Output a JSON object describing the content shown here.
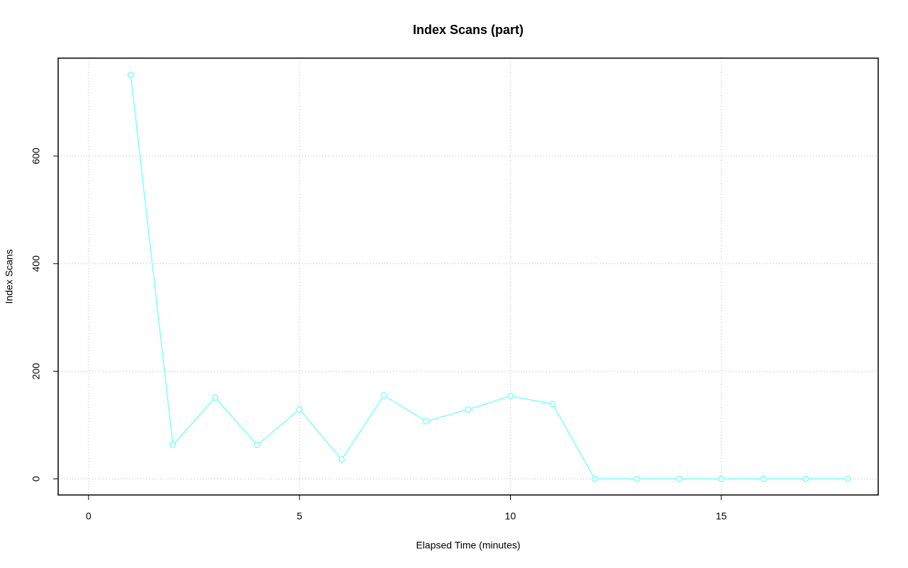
{
  "chart_data": {
    "type": "line",
    "title": "Index Scans (part)",
    "x_label": "Elapsed Time (minutes)",
    "y_label": "Index Scans",
    "x": [
      1,
      2,
      3,
      4,
      5,
      6,
      7,
      8,
      9,
      10,
      11,
      12,
      13,
      14,
      15,
      16,
      17,
      18
    ],
    "series": [
      {
        "name": "Index Scans",
        "color": "#80ffff",
        "values": [
          751,
          63,
          151,
          63,
          129,
          36,
          155,
          107,
          129,
          154,
          139,
          0,
          0,
          0,
          0,
          0,
          0,
          0
        ]
      }
    ],
    "xlim": [
      -0.72,
      18.72
    ],
    "xticks": [
      0,
      5,
      10,
      15
    ],
    "ylim": [
      -30,
      782
    ],
    "yticks": [
      0,
      200,
      400,
      600
    ],
    "grid": true
  }
}
